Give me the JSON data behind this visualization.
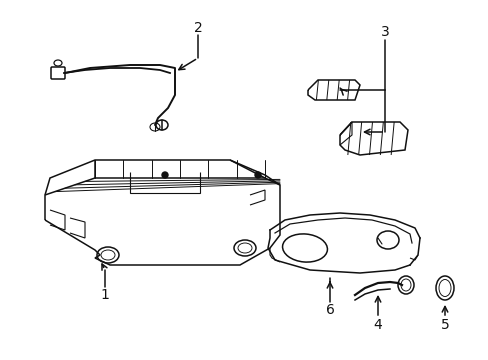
{
  "background_color": "#ffffff",
  "line_color": "#111111",
  "line_width": 1.1,
  "label_fontsize": 10,
  "figsize": [
    4.89,
    3.6
  ],
  "dpi": 100
}
